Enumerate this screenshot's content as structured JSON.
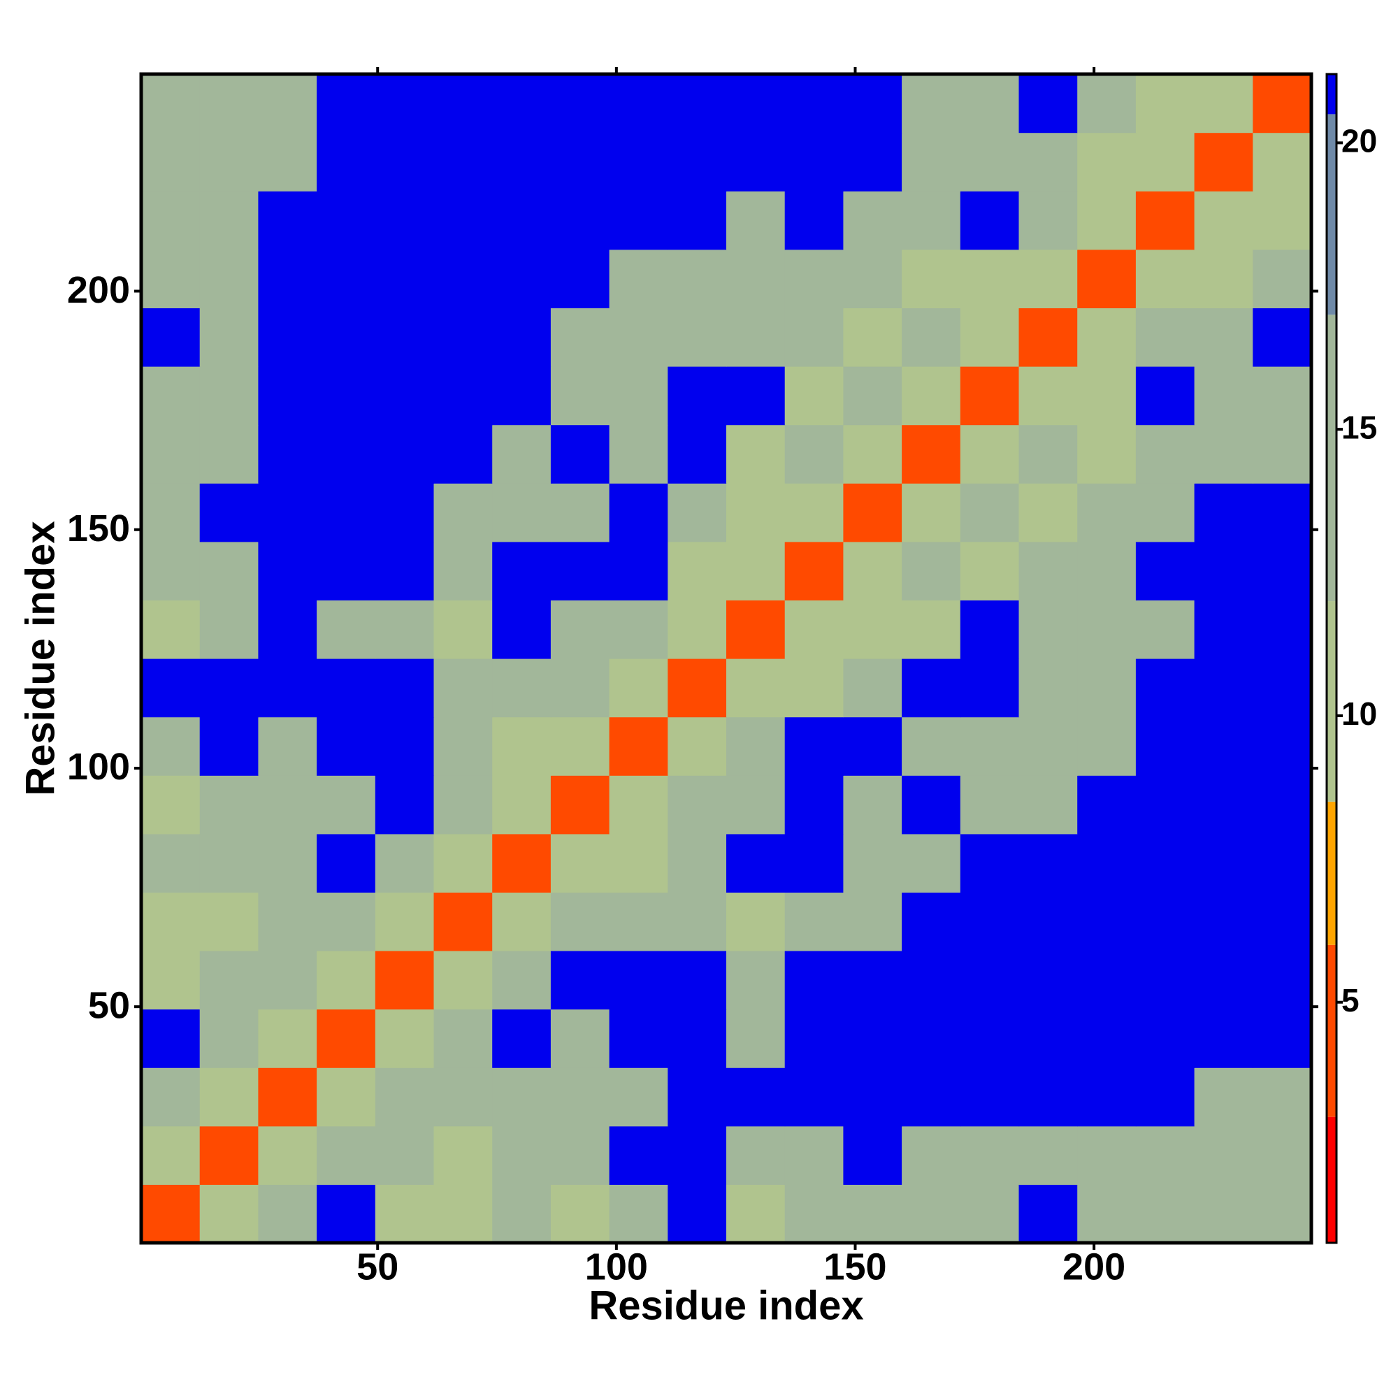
{
  "chart_data": {
    "type": "heatmap",
    "xlabel": "Residue index",
    "ylabel": "Residue index",
    "xlim": [
      0.5,
      245.5
    ],
    "ylim": [
      0.5,
      245.5
    ],
    "xticks": [
      50,
      100,
      150,
      200
    ],
    "yticks": [
      50,
      100,
      150,
      200
    ],
    "colorbar": {
      "lim": [
        0.8,
        21.2
      ],
      "ticks": [
        5,
        10,
        15,
        20
      ],
      "stops": [
        {
          "max": 3,
          "color": "#ff0000"
        },
        {
          "max": 6,
          "color": "#ff4a00"
        },
        {
          "max": 8.5,
          "color": "#ffa500"
        },
        {
          "max": 12,
          "color": "#b0c48e"
        },
        {
          "max": 17,
          "color": "#a2b79a"
        },
        {
          "max": 20.5,
          "color": "#6f8aa8"
        },
        {
          "max": 21.2,
          "color": "#0000ee"
        }
      ]
    },
    "z": [
      [
        4,
        10,
        16,
        21,
        12,
        9,
        13,
        12,
        14,
        21,
        9,
        13,
        14,
        13,
        14,
        21,
        13,
        13,
        13,
        13
      ],
      [
        10,
        4,
        10,
        16,
        13,
        12,
        13,
        13,
        21,
        21,
        13,
        14,
        21,
        15,
        15,
        16,
        14,
        14,
        13,
        13
      ],
      [
        16,
        10,
        4,
        10,
        14,
        14,
        14,
        13,
        15,
        21,
        21,
        21,
        21,
        21,
        21,
        21,
        21,
        21,
        16,
        16
      ],
      [
        21,
        16,
        10,
        4,
        10,
        15,
        21,
        14,
        21,
        21,
        15,
        21,
        21,
        21,
        21,
        21,
        21,
        21,
        21,
        21
      ],
      [
        12,
        13,
        14,
        10,
        4,
        10,
        16,
        21,
        21,
        21,
        15,
        21,
        21,
        21,
        21,
        21,
        21,
        21,
        21,
        21
      ],
      [
        9,
        12,
        14,
        15,
        10,
        4,
        10,
        13,
        13,
        13,
        12,
        13,
        14,
        21,
        21,
        21,
        21,
        21,
        21,
        21
      ],
      [
        13,
        13,
        14,
        21,
        16,
        10,
        4,
        10,
        12,
        16,
        21,
        21,
        14,
        14,
        21,
        21,
        21,
        21,
        21,
        21
      ],
      [
        12,
        13,
        13,
        14,
        21,
        13,
        10,
        4,
        10,
        13,
        14,
        21,
        13,
        21,
        15,
        14,
        21,
        21,
        21,
        21
      ],
      [
        14,
        21,
        15,
        21,
        21,
        13,
        12,
        10,
        4,
        10,
        13,
        21,
        21,
        13,
        15,
        15,
        16,
        21,
        21,
        21
      ],
      [
        21,
        21,
        21,
        21,
        21,
        13,
        16,
        13,
        10,
        4,
        10,
        12,
        13,
        21,
        21,
        15,
        16,
        21,
        21,
        21
      ],
      [
        9,
        13,
        21,
        15,
        15,
        12,
        21,
        14,
        13,
        10,
        4,
        10,
        12,
        11,
        21,
        13,
        13,
        13,
        21,
        21
      ],
      [
        13,
        14,
        21,
        21,
        21,
        13,
        21,
        21,
        21,
        12,
        10,
        4,
        10,
        13,
        12,
        13,
        13,
        21,
        21,
        21
      ],
      [
        14,
        21,
        21,
        21,
        21,
        14,
        14,
        13,
        21,
        13,
        12,
        10,
        4,
        10,
        16,
        12,
        13,
        14,
        21,
        21
      ],
      [
        13,
        15,
        21,
        21,
        21,
        21,
        14,
        21,
        13,
        21,
        11,
        13,
        10,
        4,
        10,
        16,
        9,
        13,
        14,
        14
      ],
      [
        14,
        15,
        21,
        21,
        21,
        21,
        21,
        15,
        15,
        21,
        21,
        12,
        16,
        10,
        4,
        10,
        12,
        21,
        15,
        14
      ],
      [
        21,
        16,
        21,
        21,
        21,
        21,
        21,
        14,
        15,
        15,
        13,
        13,
        12,
        16,
        10,
        4,
        10,
        13,
        15,
        21
      ],
      [
        13,
        14,
        21,
        21,
        21,
        21,
        21,
        21,
        16,
        16,
        13,
        13,
        13,
        9,
        12,
        10,
        4,
        10,
        12,
        14
      ],
      [
        13,
        14,
        21,
        21,
        21,
        21,
        21,
        21,
        21,
        21,
        13,
        21,
        14,
        13,
        21,
        13,
        10,
        4,
        10,
        12
      ],
      [
        13,
        13,
        16,
        21,
        21,
        21,
        21,
        21,
        21,
        21,
        21,
        21,
        21,
        14,
        15,
        15,
        12,
        10,
        4,
        10
      ],
      [
        13,
        13,
        16,
        21,
        21,
        21,
        21,
        21,
        21,
        21,
        21,
        21,
        21,
        14,
        14,
        21,
        14,
        12,
        10,
        4
      ]
    ]
  }
}
